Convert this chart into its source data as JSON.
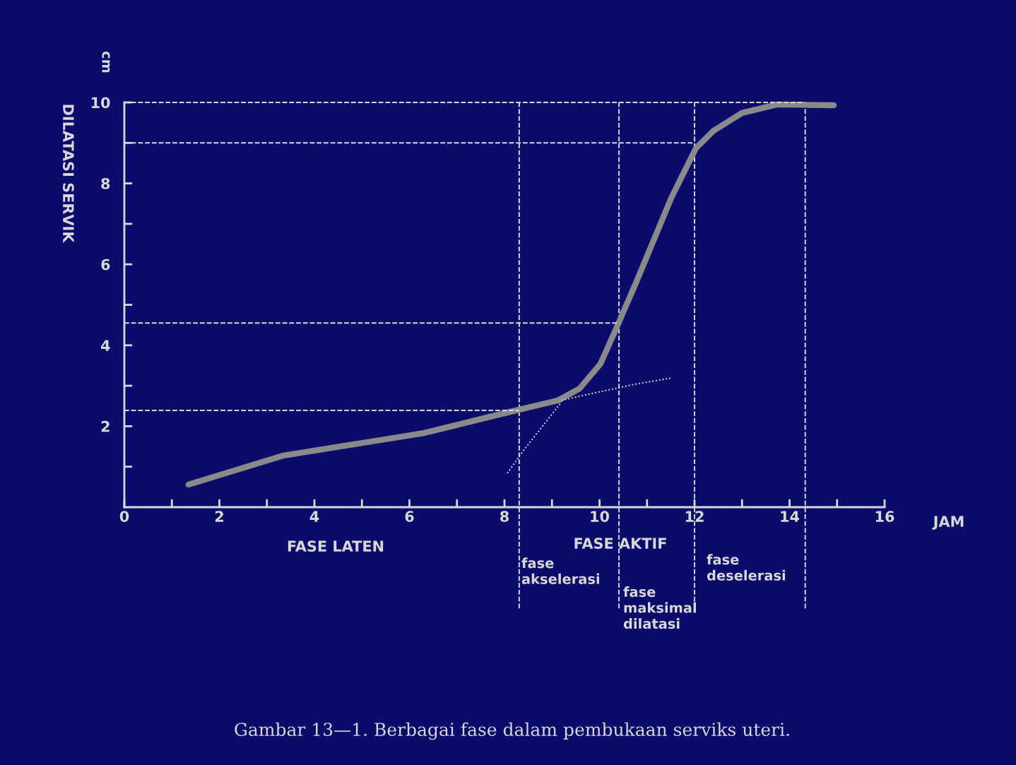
{
  "chart_data": {
    "type": "line",
    "xlabel": "JAM",
    "ylabel": "DILATASI SERVIK",
    "xlim": [
      0,
      16
    ],
    "ylim": [
      0,
      10
    ],
    "xticks": [
      0,
      {
        "value": 1,
        "label": null
      },
      2,
      {
        "value": 3,
        "label": null
      },
      4,
      {
        "value": 5,
        "label": null
      },
      6,
      {
        "value": 7,
        "label": null
      },
      8,
      {
        "value": 9,
        "label": null
      },
      10,
      {
        "value": 11,
        "label": null
      },
      12,
      {
        "value": 13,
        "label": null
      },
      14,
      {
        "value": 15,
        "label": null
      },
      16
    ],
    "yticks": [
      {
        "value": 1,
        "label": null
      },
      2,
      {
        "value": 3,
        "label": null
      },
      4,
      {
        "value": 5,
        "label": null
      },
      6,
      {
        "value": 7,
        "label": null
      },
      8,
      {
        "value": 9,
        "label": null
      },
      10
    ],
    "grid": false,
    "legend": false,
    "marker": "none",
    "series": [
      {
        "color": "#8a8a8a",
        "line_style": "solid",
        "x": [
          1.35,
          3.33,
          6.3,
          8.31,
          9.13,
          9.58,
          10.02,
          10.32,
          10.77,
          11.51,
          12.03,
          12.4,
          13.0,
          13.74,
          14.93
        ],
        "values": [
          0.56,
          1.27,
          1.83,
          2.41,
          2.64,
          2.93,
          3.54,
          4.33,
          5.55,
          7.64,
          8.87,
          9.3,
          9.74,
          9.95,
          9.93
        ]
      },
      {
        "color": "#d8d8d8",
        "line_style": "dotted",
        "x": [
          8.06,
          8.4,
          8.8,
          9.2
        ],
        "values": [
          0.84,
          1.4,
          2.0,
          2.6
        ]
      },
      {
        "color": "#d8d8d8",
        "line_style": "dotted",
        "x": [
          9.2,
          10.0,
          10.8,
          11.51
        ],
        "values": [
          2.64,
          2.85,
          3.05,
          3.19
        ]
      },
      {
        "color": "#d8d8d8",
        "line_style": "dashed",
        "x": [
          0,
          14.33
        ],
        "values": [
          10,
          10
        ]
      },
      {
        "color": "#d8d8d8",
        "line_style": "dashed",
        "x": [
          0,
          12.0
        ],
        "values": [
          9,
          9
        ]
      },
      {
        "color": "#d8d8d8",
        "line_style": "dashed",
        "x": [
          0,
          10.41
        ],
        "values": [
          4.55,
          4.55
        ]
      },
      {
        "color": "#d8d8d8",
        "line_style": "dashed",
        "x": [
          0,
          8.31
        ],
        "values": [
          2.39,
          2.39
        ]
      }
    ],
    "ref_lines": [
      {
        "axis": "x",
        "value": 8.31,
        "color": "#d8d8d8",
        "line_style": "dashed"
      },
      {
        "axis": "x",
        "value": 10.41,
        "color": "#d8d8d8",
        "line_style": "dashed"
      },
      {
        "axis": "x",
        "value": 12.0,
        "color": "#d8d8d8",
        "line_style": "dashed"
      },
      {
        "axis": "x",
        "value": 14.33,
        "color": "#d8d8d8",
        "line_style": "dashed"
      }
    ],
    "annotations": [
      "cm",
      "FASE LATEN",
      "FASE AKTIF",
      "fase\nakselerasi",
      "fase\nmaksimal\ndilatasi",
      "fase\ndeselerasi",
      "Gambar 13—1. Berbagai fase dalam pembukaan serviks uteri."
    ]
  }
}
